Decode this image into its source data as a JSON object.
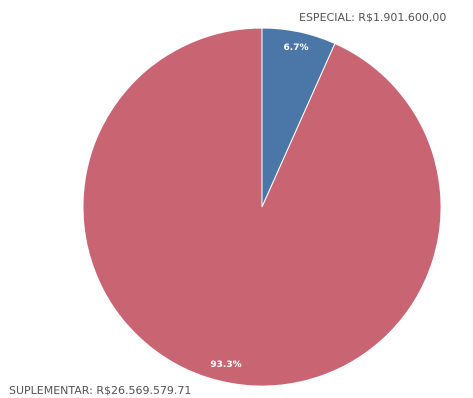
{
  "chart_data": {
    "type": "pie",
    "title": "",
    "legend": "none",
    "slices": [
      {
        "label": "ESPECIAL",
        "value": 1901600.0,
        "value_text": "R$1.901.600,00",
        "percent_text": "6.7%",
        "color": "#4a76a8"
      },
      {
        "label": "SUPLEMENTAR",
        "value": 26569579.71,
        "value_text": "R$26.569.579.71",
        "percent_text": "93.3%",
        "color": "#c96473"
      }
    ]
  }
}
